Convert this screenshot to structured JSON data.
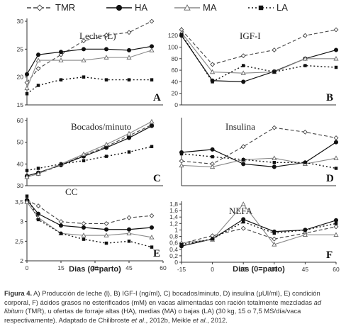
{
  "legend": [
    {
      "name": "TMR",
      "dash": "6,3",
      "marker": "diamond"
    },
    {
      "name": "HA",
      "dash": "",
      "marker": "circle"
    },
    {
      "name": "MA",
      "dash": "",
      "marker": "triangle"
    },
    {
      "name": "LA",
      "dash": "2,3",
      "marker": "square"
    }
  ],
  "x_axis_title_left": "Dias (0=parto)",
  "x_axis_title_right": "Dias (0=parto)",
  "caption": {
    "fig": "Figura 4.",
    "t1": " A) Producción de leche (l), B) IGF-I (ng/ml), C) bocados/minuto, D) insulina (µUI/ml), E) condición corporal, F) ácidos grasos no esterificados (mM) en vacas alimentadas con ración totalmente mezcladas ",
    "adlib": "ad libitum",
    "t2": " (TMR), u ofertas de forraje altas (HA), medias (MA) o bajas (LA) (30 kg, 15 o 7,5 MS/día/vaca respectivamente). Adaptado de Chilibroste ",
    "etal1": "et al",
    "t3": "., 2012b, Meikle ",
    "etal2": "et al",
    "t4": "., 2012."
  },
  "chart_data": [
    {
      "type": "line",
      "panel": "A",
      "title": "Leche (L)",
      "x": [
        0,
        5,
        15,
        25,
        35,
        45,
        55
      ],
      "xlim": [
        0,
        60
      ],
      "ylim": [
        15,
        30
      ],
      "yticks": [
        15,
        20,
        25,
        30
      ],
      "xticks": [],
      "series": [
        {
          "name": "TMR",
          "values": [
            19,
            21.5,
            24,
            26.5,
            27.5,
            28,
            30
          ]
        },
        {
          "name": "HA",
          "values": [
            20.5,
            24,
            24.5,
            25,
            25,
            24.8,
            25.5
          ]
        },
        {
          "name": "MA",
          "values": [
            18,
            23,
            23,
            23,
            23.5,
            23.5,
            24.8
          ]
        },
        {
          "name": "LA",
          "values": [
            17,
            18.5,
            19.5,
            20,
            19.5,
            19.5,
            19.5
          ]
        }
      ]
    },
    {
      "type": "line",
      "panel": "B",
      "title": "IGF-I",
      "x": [
        -15,
        0,
        15,
        30,
        45,
        60
      ],
      "xlim": [
        -15,
        60
      ],
      "ylim": [
        0,
        130
      ],
      "yticks": [
        0,
        20,
        40,
        60,
        80,
        100,
        120
      ],
      "xticks": [],
      "series": [
        {
          "name": "TMR",
          "values": [
            130,
            70,
            85,
            95,
            120,
            130
          ]
        },
        {
          "name": "HA",
          "values": [
            120,
            42,
            40,
            58,
            80,
            95
          ]
        },
        {
          "name": "MA",
          "values": [
            125,
            57,
            55,
            57,
            80,
            80
          ]
        },
        {
          "name": "LA",
          "values": [
            122,
            40,
            68,
            57,
            68,
            65
          ]
        }
      ]
    },
    {
      "type": "line",
      "panel": "C",
      "title": "Bocados/minuto",
      "x": [
        0,
        5,
        15,
        25,
        35,
        45,
        55
      ],
      "xlim": [
        0,
        60
      ],
      "ylim": [
        30,
        60
      ],
      "yticks": [
        30,
        40,
        50,
        60
      ],
      "xticks": [],
      "series": [
        {
          "name": "TMR",
          "values": [
            34,
            35.5,
            39.5,
            44,
            48,
            53,
            58
          ]
        },
        {
          "name": "HA",
          "values": [
            34.5,
            36,
            39.5,
            43.5,
            47.5,
            52,
            57.5
          ]
        },
        {
          "name": "MA",
          "values": [
            34,
            35.5,
            40,
            44.5,
            49,
            54,
            59.5
          ]
        },
        {
          "name": "LA",
          "values": [
            37,
            38,
            40,
            41.5,
            43.5,
            45.5,
            48
          ]
        }
      ]
    },
    {
      "type": "line",
      "panel": "D",
      "title": "Insulina",
      "x": [
        -15,
        0,
        15,
        30,
        45,
        60
      ],
      "xlim": [
        -15,
        60
      ],
      "ylim": [
        0,
        4.5
      ],
      "yticks": [],
      "xticks": [],
      "series": [
        {
          "name": "TMR",
          "values": [
            1.7,
            1.5,
            2.7,
            4,
            3.7,
            3.3
          ]
        },
        {
          "name": "HA",
          "values": [
            2.3,
            2.5,
            1.5,
            1.3,
            1.6,
            3
          ]
        },
        {
          "name": "MA",
          "values": [
            1.4,
            1.3,
            1.8,
            1.9,
            1.5,
            1.9
          ]
        },
        {
          "name": "LA",
          "values": [
            2.2,
            2,
            1.8,
            1.6,
            1.6,
            1.2
          ]
        }
      ]
    },
    {
      "type": "line",
      "panel": "E",
      "title": "CC",
      "x": [
        0,
        5,
        15,
        25,
        35,
        45,
        55
      ],
      "xlim": [
        0,
        60
      ],
      "ylim": [
        2,
        3.5
      ],
      "yticks": [
        2,
        2.5,
        3,
        3.5
      ],
      "xticks": [
        0,
        15,
        30,
        45,
        60
      ],
      "series": [
        {
          "name": "TMR",
          "values": [
            3.55,
            3.4,
            3,
            2.95,
            2.95,
            3.1,
            3.15
          ]
        },
        {
          "name": "HA",
          "values": [
            3.55,
            3.2,
            2.9,
            2.85,
            2.8,
            2.8,
            2.85
          ]
        },
        {
          "name": "MA",
          "values": [
            3.5,
            3.1,
            2.7,
            2.65,
            2.65,
            2.7,
            2.6
          ]
        },
        {
          "name": "LA",
          "values": [
            3.65,
            3.05,
            2.7,
            2.55,
            2.45,
            2.5,
            2.35
          ]
        }
      ]
    },
    {
      "type": "line",
      "panel": "F",
      "title": "NEFA",
      "x": [
        -15,
        0,
        15,
        30,
        45,
        60
      ],
      "xlim": [
        -15,
        60
      ],
      "ylim": [
        0,
        1.8
      ],
      "yticks": [
        0,
        0.2,
        0.4,
        0.6,
        0.8,
        1,
        1.2,
        1.4,
        1.6,
        1.8
      ],
      "ytick_labels": [
        "0",
        "0,2",
        "0,4",
        "0,6",
        "0,8",
        "1",
        "1,2",
        "1,4",
        "1,6",
        "1,8"
      ],
      "xticks": [
        -15,
        0,
        15,
        30,
        45,
        60
      ],
      "series": [
        {
          "name": "TMR",
          "values": [
            0.58,
            0.82,
            1.05,
            0.72,
            0.9,
            1.1
          ]
        },
        {
          "name": "HA",
          "values": [
            0.5,
            0.72,
            1.33,
            0.95,
            1,
            1.3
          ]
        },
        {
          "name": "MA",
          "values": [
            0.6,
            0.7,
            1.8,
            0.55,
            0.85,
            0.85
          ]
        },
        {
          "name": "LA",
          "values": [
            0.55,
            0.72,
            1.25,
            0.9,
            1.0,
            1.2
          ]
        }
      ]
    }
  ]
}
